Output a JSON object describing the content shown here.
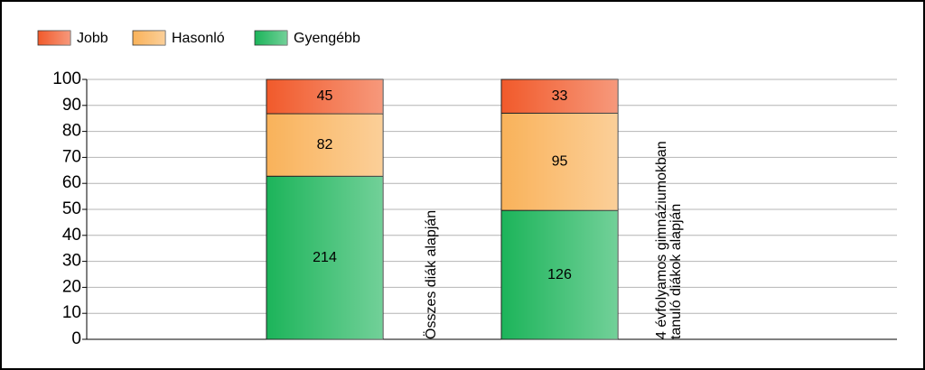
{
  "chart_data": {
    "type": "bar",
    "stacking": "percent",
    "categories": [
      [
        "Összes diák alapján"
      ],
      [
        "4 évfolyamos gimnáziumokban",
        "tanuló diákok alapján"
      ]
    ],
    "series": [
      {
        "name": "Gyengébb",
        "color": "#1cb45a",
        "values": [
          214,
          126
        ]
      },
      {
        "name": "Hasonló",
        "color": "#f9b25a",
        "values": [
          82,
          95
        ]
      },
      {
        "name": "Jobb",
        "color": "#f15a2b",
        "values": [
          45,
          33
        ]
      }
    ],
    "legend_order": [
      2,
      1,
      0
    ],
    "legend": "top-left",
    "ylim": [
      0,
      100
    ],
    "yticks": [
      0,
      10,
      20,
      30,
      40,
      50,
      60,
      70,
      80,
      90,
      100
    ],
    "grid": true
  }
}
